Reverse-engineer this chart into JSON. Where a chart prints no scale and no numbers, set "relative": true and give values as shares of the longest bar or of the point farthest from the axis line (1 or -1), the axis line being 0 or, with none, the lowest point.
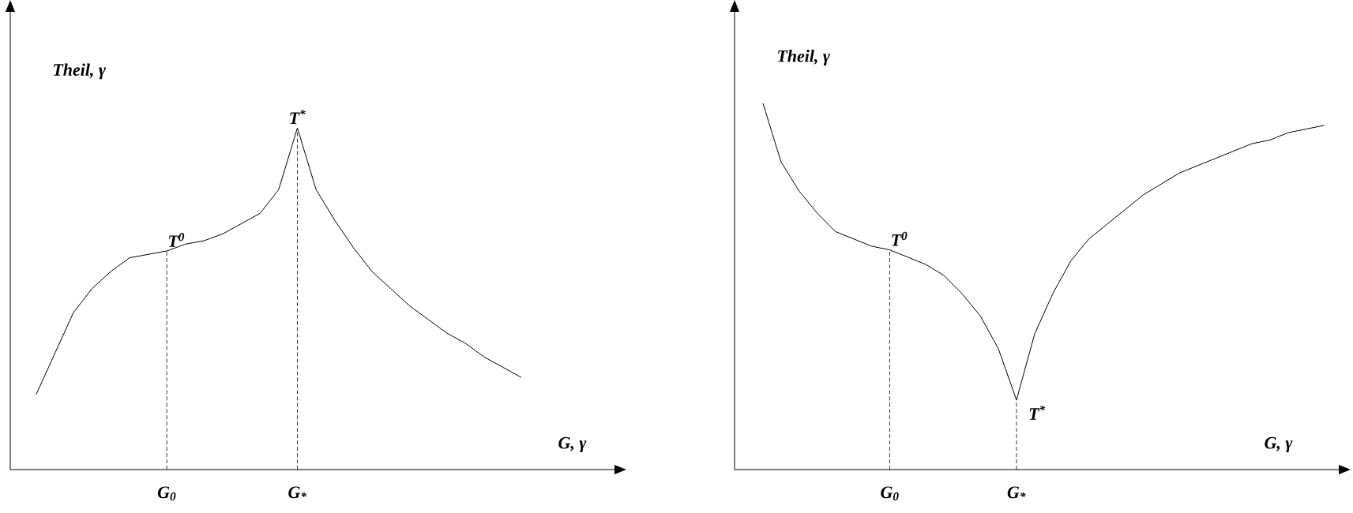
{
  "chart_data": [
    {
      "type": "line",
      "relative": true,
      "xlabel": "G, γ",
      "ylabel": "Theil, γ",
      "categories": [
        null,
        null,
        null,
        null,
        null,
        null,
        null,
        "G$_{0}$",
        null,
        null,
        null,
        null,
        null,
        null,
        "G$_{*}$",
        null,
        null,
        null,
        null,
        null,
        null,
        null,
        null,
        null,
        null,
        null,
        null
      ],
      "series": [
        {
          "color": "#000000",
          "values": [
            0.22,
            0.34,
            0.46,
            0.53,
            0.58,
            0.62,
            0.63,
            0.64,
            0.66,
            0.67,
            0.69,
            0.72,
            0.75,
            0.82,
            1,
            0.82,
            0.73,
            0.65,
            0.58,
            0.53,
            0.48,
            0.44,
            0.4,
            0.37,
            0.33,
            0.3,
            0.27
          ]
        }
      ],
      "annotations": [
        {
          "text": "T$^{0}$",
          "x": "G$_{0}$",
          "y": 0.64
        },
        {
          "text": "T$^{*}$",
          "x": "G$_{*}$",
          "y": 1
        }
      ]
    },
    {
      "type": "line",
      "relative": true,
      "xlabel": "G, γ",
      "ylabel": "Theil, γ",
      "categories": [
        null,
        null,
        null,
        null,
        null,
        null,
        null,
        "G$_{0}$",
        null,
        null,
        null,
        null,
        null,
        null,
        "G$_{*}$",
        null,
        null,
        null,
        null,
        null,
        null,
        null,
        null,
        null,
        null,
        null,
        null,
        null,
        null,
        null,
        null,
        null
      ],
      "series": [
        {
          "color": "#000000",
          "values": [
            1,
            0.84,
            0.76,
            0.7,
            0.65,
            0.63,
            0.61,
            0.6,
            0.58,
            0.56,
            0.53,
            0.48,
            0.42,
            0.33,
            0.19,
            0.37,
            0.48,
            0.57,
            0.63,
            0.67,
            0.71,
            0.75,
            0.78,
            0.81,
            0.83,
            0.85,
            0.87,
            0.89,
            0.9,
            0.92,
            0.93,
            0.94
          ]
        }
      ],
      "annotations": [
        {
          "text": "T$^{0}$",
          "x": "G$_{0}$",
          "y": 0.6
        },
        {
          "text": "T$^{*}$",
          "x": "G$_{*}$",
          "y": 0.19
        }
      ]
    }
  ]
}
